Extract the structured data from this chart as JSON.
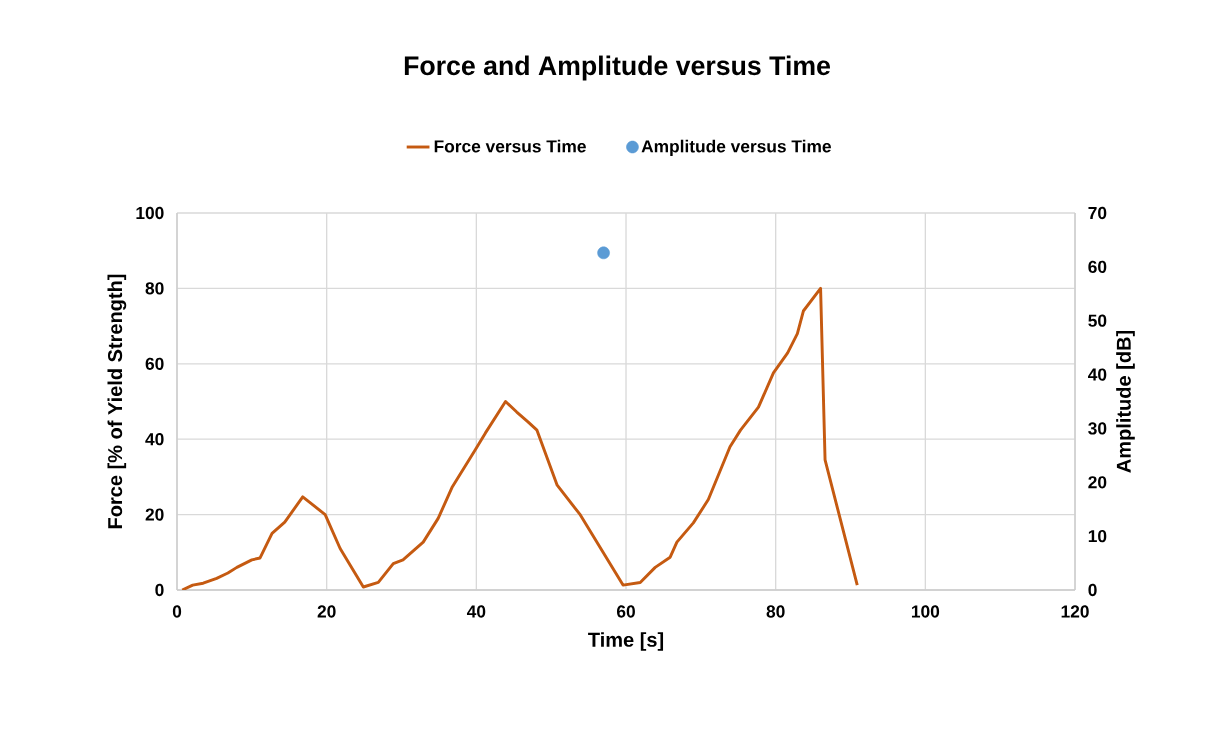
{
  "chart_data": {
    "type": "line",
    "title": "Force and Amplitude versus Time",
    "xlabel": "Time [s]",
    "ylabel": "Force [% of Yield Strength]",
    "y2label": "Amplitude [dB]",
    "xlim": [
      0,
      120
    ],
    "xticks": [
      0,
      20,
      40,
      60,
      80,
      100,
      120
    ],
    "ylim": [
      0,
      100
    ],
    "yticks": [
      0,
      20,
      40,
      60,
      80,
      100
    ],
    "y2lim": [
      0,
      70
    ],
    "y2ticks": [
      0,
      10,
      20,
      30,
      40,
      50,
      60,
      70
    ],
    "grid": true,
    "legend": "top",
    "series": [
      {
        "name": "Force versus Time",
        "type": "line",
        "color": "#c55a11",
        "x": [
          0.7,
          2.1,
          3.5,
          5.3,
          6.8,
          8,
          10,
          11.1,
          12.7,
          14.4,
          16.8,
          18.2,
          19.8,
          21.8,
          24.9,
          26.9,
          28.9,
          30.2,
          32.9,
          34.9,
          36.8,
          39.8,
          41.2,
          43.9,
          45.4,
          46.9,
          48.1,
          50.8,
          53.9,
          59.6,
          61.9,
          63.9,
          65.9,
          66.8,
          69,
          71,
          73.9,
          75.3,
          77.7,
          79.7,
          81.6,
          82.9,
          83.7,
          86,
          86.6,
          90.9
        ],
        "values": [
          0,
          1.3,
          1.8,
          3.1,
          4.5,
          6,
          8,
          8.5,
          15,
          18,
          24.7,
          22.5,
          20,
          11,
          0.8,
          2,
          7,
          8,
          12.7,
          19,
          27.4,
          37,
          41.6,
          50,
          47.2,
          44.6,
          42.4,
          27.8,
          19.9,
          1.3,
          2,
          6,
          8.7,
          12.7,
          17.8,
          24,
          38,
          42.4,
          48.5,
          57.6,
          62.9,
          68,
          74,
          80,
          34.5,
          1.3
        ]
      },
      {
        "name": "Amplitude versus Time",
        "type": "scatter",
        "axis": "y2",
        "marker": "circle",
        "color": "#5b9bd5",
        "x": [
          57
        ],
        "values": [
          62.6
        ]
      }
    ]
  }
}
